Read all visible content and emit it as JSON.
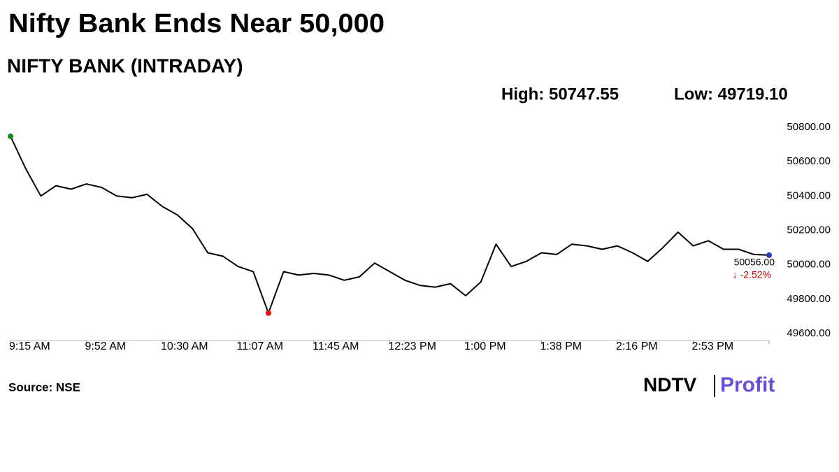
{
  "chart_data": {
    "type": "line",
    "title": "Nifty Bank Ends Near 50,000",
    "subtitle": "NIFTY BANK (INTRADAY)",
    "high_text": "High: 50747.55",
    "low_text": "Low: 49719.10",
    "source": "Source: NSE",
    "logo_left": "NDTV",
    "logo_right": "Profit",
    "categories": [
      "9:15 AM",
      null,
      null,
      null,
      null,
      "9:52 AM",
      null,
      null,
      null,
      null,
      "10:30 AM",
      null,
      null,
      null,
      null,
      "11:07 AM",
      null,
      null,
      null,
      null,
      "11:45 AM",
      null,
      null,
      null,
      null,
      "12:23 PM",
      null,
      null,
      null,
      null,
      "1:00 PM",
      null,
      null,
      null,
      null,
      "1:38 PM",
      null,
      null,
      null,
      null,
      "2:16 PM",
      null,
      null,
      null,
      null,
      "2:53 PM",
      null,
      null,
      null,
      null,
      null
    ],
    "series": [
      {
        "name": "NIFTY BANK",
        "color": "#000000",
        "values": [
          50747.55,
          50560,
          50400,
          50460,
          50440,
          50470,
          50450,
          50400,
          50390,
          50410,
          50340,
          50290,
          50210,
          50070,
          50050,
          49990,
          49960,
          49719.1,
          49960,
          49940,
          49950,
          49940,
          49910,
          49930,
          50010,
          49960,
          49910,
          49880,
          49870,
          49890,
          49820,
          49900,
          50120,
          49990,
          50020,
          50070,
          50060,
          50120,
          50110,
          50090,
          50110,
          50070,
          50020,
          50100,
          50190,
          50110,
          50140,
          50090,
          50090,
          50060,
          50056.0
        ]
      }
    ],
    "last_label": "50056.00",
    "change_label": "↓ -2.52%",
    "change_color": "#c00000",
    "high_color": "#1a8a1a",
    "low_color": "#e01010",
    "last_color": "#1f3fbf",
    "ylim": [
      49600,
      50800
    ],
    "yticks": [
      {
        "value": 49600,
        "label": "49600.00"
      },
      {
        "value": 49800,
        "label": "49800.00"
      },
      {
        "value": 50000,
        "label": "50000.00"
      },
      {
        "value": 50200,
        "label": "50200.00"
      },
      {
        "value": 50400,
        "label": "50400.00"
      },
      {
        "value": 50600,
        "label": "50600.00"
      },
      {
        "value": 50800,
        "label": "50800.00"
      }
    ],
    "grid": false
  }
}
